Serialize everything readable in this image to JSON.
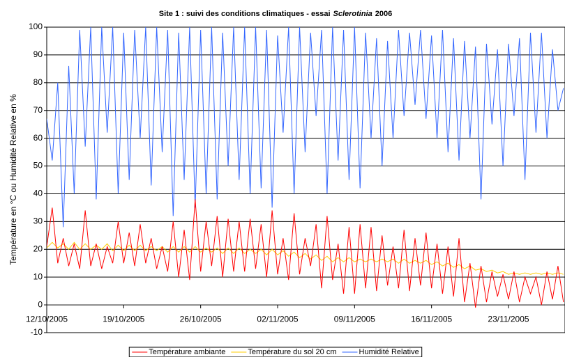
{
  "chart_data": {
    "type": "line",
    "title": [
      "Site 1 : suivi des conditions climatiques - essai",
      "Sclerotinia",
      "2006"
    ],
    "y_label": "Température en °C ou Humidité Relative en %",
    "x": [
      0,
      0.5,
      1,
      1.5,
      2,
      2.5,
      3,
      3.5,
      4,
      4.5,
      5,
      5.5,
      6,
      6.5,
      7,
      7.5,
      8,
      8.5,
      9,
      9.5,
      10,
      10.5,
      11,
      11.5,
      12,
      12.5,
      13,
      13.5,
      14,
      14.5,
      15,
      15.5,
      16,
      16.5,
      17,
      17.5,
      18,
      18.5,
      19,
      19.5,
      20,
      20.5,
      21,
      21.5,
      22,
      22.5,
      23,
      23.5,
      24,
      24.5,
      25,
      25.5,
      26,
      26.5,
      27,
      27.5,
      28,
      28.5,
      29,
      29.5,
      30,
      30.5,
      31,
      31.5,
      32,
      32.5,
      33,
      33.5,
      34,
      34.5,
      35,
      35.5,
      36,
      36.5,
      37,
      37.5,
      38,
      38.5,
      39,
      39.5,
      40,
      40.5,
      41,
      41.5,
      42,
      42.5,
      43,
      43.5,
      44,
      44.5,
      45,
      45.5,
      46,
      46.5,
      47
    ],
    "xlim": [
      0,
      47.14
    ],
    "xticks": [
      {
        "value": 0,
        "label": "12/10/2005"
      },
      {
        "value": 7,
        "label": "19/10/2005"
      },
      {
        "value": 14,
        "label": "26/10/2005"
      },
      {
        "value": 21,
        "label": "02/11/2005"
      },
      {
        "value": 28,
        "label": "09/11/2005"
      },
      {
        "value": 35,
        "label": "16/11/2005"
      },
      {
        "value": 42,
        "label": "23/11/2005"
      }
    ],
    "ylim": [
      -10,
      100
    ],
    "yticks": [
      -10,
      0,
      10,
      20,
      30,
      40,
      50,
      60,
      70,
      80,
      90,
      100
    ],
    "grid": true,
    "series": [
      {
        "name": "Température ambiante",
        "color": "#ff0000",
        "values": [
          21,
          35,
          15,
          24,
          14,
          22,
          13,
          34,
          14,
          22,
          13,
          21,
          15,
          30,
          15,
          26,
          14,
          29,
          15,
          24,
          13,
          21,
          12,
          30,
          10,
          27,
          9,
          38,
          12,
          30,
          14,
          32,
          10,
          31,
          12,
          30,
          12,
          31,
          13,
          29,
          10,
          34,
          11,
          24,
          9,
          33,
          11,
          24,
          14,
          29,
          6,
          32,
          9,
          22,
          4,
          28,
          4,
          29,
          6,
          28,
          5,
          25,
          7,
          21,
          6,
          27,
          5,
          24,
          7,
          26,
          6,
          22,
          4,
          21,
          3,
          24,
          1,
          15,
          -1,
          14,
          1,
          12,
          3,
          11,
          2,
          12,
          1,
          10,
          4,
          10,
          0,
          12,
          2,
          14,
          1
        ]
      },
      {
        "name": "Température du sol 20 cm",
        "color": "#ffcc00",
        "values": [
          20.5,
          22.5,
          20.5,
          22,
          20,
          22.5,
          20,
          22,
          20,
          21.5,
          20,
          22,
          19.5,
          21.5,
          19.5,
          21.5,
          19.5,
          21.5,
          19.5,
          21,
          19.5,
          21,
          19,
          21,
          19,
          21,
          19,
          21,
          19,
          20.5,
          19,
          20.5,
          18.5,
          20.5,
          18.5,
          20.5,
          18.5,
          20,
          18.5,
          20,
          18,
          20,
          18,
          19.5,
          17.5,
          19,
          17,
          18.5,
          16.5,
          18,
          16,
          17.5,
          15.5,
          17,
          15.5,
          17,
          15.5,
          16.5,
          15.5,
          16.5,
          15.5,
          16.5,
          15.5,
          16.5,
          15,
          16.5,
          15,
          16,
          15,
          16,
          14.5,
          15.5,
          14,
          15,
          13.5,
          14.5,
          13,
          14,
          12.5,
          13,
          12,
          12.5,
          11.5,
          12,
          11,
          11.5,
          11,
          11.5,
          11,
          11.5,
          11,
          11.5,
          11,
          11.5,
          11
        ]
      },
      {
        "name": "Humidité Relative",
        "color": "#3366ff",
        "values": [
          67,
          52,
          80,
          28,
          86,
          40,
          99,
          57,
          100,
          38,
          100,
          62,
          100,
          40,
          98,
          45,
          99,
          60,
          100,
          43,
          100,
          55,
          99,
          32,
          98,
          45,
          100,
          35,
          99,
          40,
          100,
          38,
          98,
          50,
          100,
          45,
          100,
          40,
          100,
          42,
          99,
          35,
          97,
          62,
          100,
          40,
          100,
          55,
          98,
          68,
          99,
          40,
          100,
          52,
          99,
          45,
          100,
          42,
          98,
          60,
          96,
          50,
          95,
          60,
          99,
          68,
          98,
          72,
          99,
          67,
          97,
          60,
          99,
          55,
          96,
          52,
          95,
          60,
          93,
          38,
          94,
          65,
          92,
          50,
          94,
          68,
          96,
          45,
          98,
          62,
          98,
          60,
          92,
          70,
          78
        ]
      }
    ],
    "legend": "bottom"
  }
}
